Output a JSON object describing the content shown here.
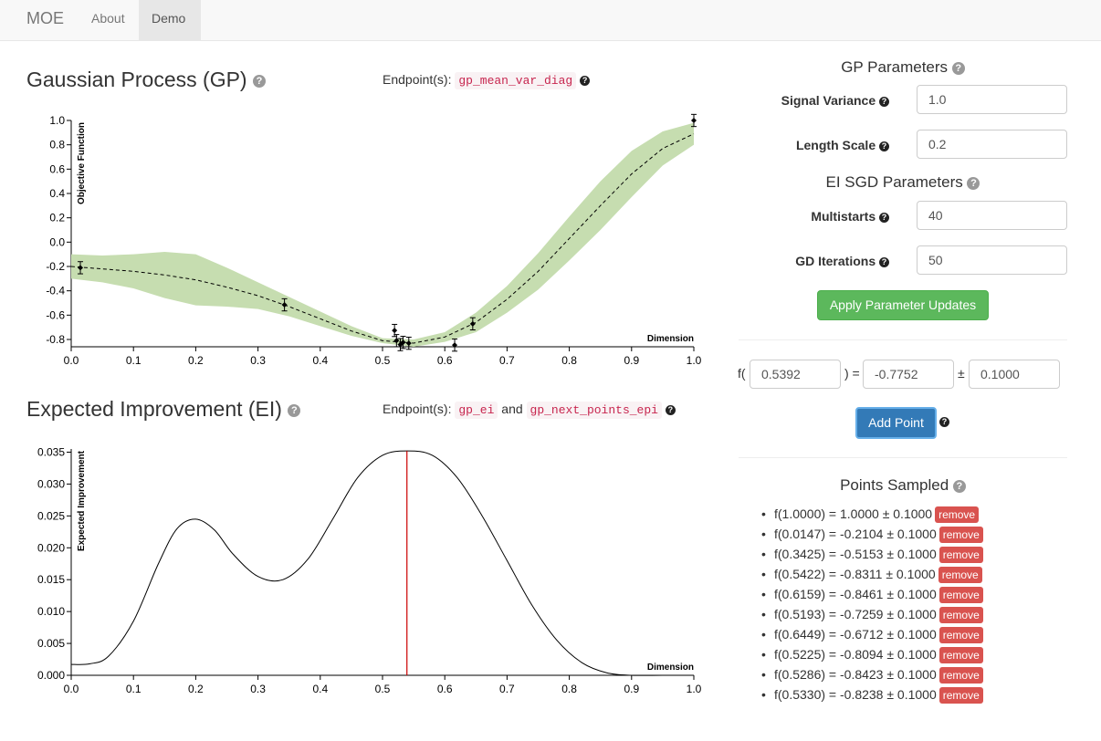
{
  "nav": {
    "brand": "MOE",
    "about": "About",
    "demo": "Demo"
  },
  "gp": {
    "title": "Gaussian Process (GP)",
    "endpoint_label": "Endpoint(s):",
    "endpoint_code": "gp_mean_var_diag"
  },
  "ei": {
    "title": "Expected Improvement (EI)",
    "endpoint_label": "Endpoint(s):",
    "endpoint_code_1": "gp_ei",
    "endpoint_and": "and",
    "endpoint_code_2": "gp_next_points_epi"
  },
  "gp_params": {
    "title": "GP Parameters",
    "signal_variance_label": "Signal Variance",
    "signal_variance_value": "1.0",
    "length_scale_label": "Length Scale",
    "length_scale_value": "0.2"
  },
  "ei_params": {
    "title": "EI SGD Parameters",
    "multistarts_label": "Multistarts",
    "multistarts_value": "40",
    "gd_iterations_label": "GD Iterations",
    "gd_iterations_value": "50",
    "apply_button": "Apply Parameter Updates"
  },
  "new_point": {
    "f_open": "f(",
    "x_value": "0.5392",
    "equals": ") =",
    "y_value": "-0.7752",
    "pm": "±",
    "noise_value": "0.1000",
    "add_button": "Add Point"
  },
  "points_sampled": {
    "title": "Points Sampled",
    "remove_label": "remove",
    "items": [
      "f(1.0000) = 1.0000 ± 0.1000",
      "f(0.0147) = -0.2104 ± 0.1000",
      "f(0.3425) = -0.5153 ± 0.1000",
      "f(0.5422) = -0.8311 ± 0.1000",
      "f(0.6159) = -0.8461 ± 0.1000",
      "f(0.5193) = -0.7259 ± 0.1000",
      "f(0.6449) = -0.6712 ± 0.1000",
      "f(0.5225) = -0.8094 ± 0.1000",
      "f(0.5286) = -0.8423 ± 0.1000",
      "f(0.5330) = -0.8238 ± 0.1000"
    ]
  },
  "colors": {
    "band": "#c6ddb0",
    "ei_line": "#000000",
    "next_point_line": "#cc0000"
  },
  "chart_data": [
    {
      "type": "line",
      "name": "gp",
      "ylabel": "Objective Function",
      "xlabel": "Dimension",
      "xlim": [
        0,
        1
      ],
      "ylim": [
        -0.86,
        1.0
      ],
      "x_ticks": [
        "0.0",
        "0.1",
        "0.2",
        "0.3",
        "0.4",
        "0.5",
        "0.6",
        "0.7",
        "0.8",
        "0.9",
        "1.0"
      ],
      "y_ticks": [
        "-0.8",
        "-0.6",
        "-0.4",
        "-0.2",
        "0.0",
        "0.2",
        "0.4",
        "0.6",
        "0.8",
        "1.0"
      ],
      "mean": {
        "x": [
          0.0,
          0.05,
          0.1,
          0.15,
          0.2,
          0.25,
          0.3,
          0.35,
          0.4,
          0.45,
          0.5,
          0.55,
          0.6,
          0.65,
          0.7,
          0.75,
          0.8,
          0.85,
          0.9,
          0.95,
          1.0
        ],
        "y": [
          -0.2,
          -0.22,
          -0.24,
          -0.27,
          -0.31,
          -0.37,
          -0.44,
          -0.53,
          -0.63,
          -0.73,
          -0.81,
          -0.83,
          -0.78,
          -0.66,
          -0.47,
          -0.24,
          0.03,
          0.3,
          0.56,
          0.77,
          0.89
        ]
      },
      "upper": [
        -0.1,
        -0.11,
        -0.1,
        -0.08,
        -0.1,
        -0.21,
        -0.33,
        -0.45,
        -0.57,
        -0.69,
        -0.79,
        -0.8,
        -0.74,
        -0.58,
        -0.36,
        -0.09,
        0.21,
        0.5,
        0.75,
        0.91,
        0.98
      ],
      "lower": [
        -0.3,
        -0.33,
        -0.38,
        -0.46,
        -0.52,
        -0.53,
        -0.55,
        -0.61,
        -0.69,
        -0.77,
        -0.83,
        -0.86,
        -0.82,
        -0.74,
        -0.58,
        -0.39,
        -0.15,
        0.1,
        0.37,
        0.63,
        0.8
      ],
      "points": [
        {
          "x": 1.0,
          "y": 1.0,
          "err": 0.05
        },
        {
          "x": 0.0147,
          "y": -0.2104,
          "err": 0.05
        },
        {
          "x": 0.3425,
          "y": -0.5153,
          "err": 0.05
        },
        {
          "x": 0.5422,
          "y": -0.8311,
          "err": 0.05
        },
        {
          "x": 0.6159,
          "y": -0.8461,
          "err": 0.05
        },
        {
          "x": 0.5193,
          "y": -0.7259,
          "err": 0.05
        },
        {
          "x": 0.6449,
          "y": -0.6712,
          "err": 0.05
        },
        {
          "x": 0.5225,
          "y": -0.8094,
          "err": 0.05
        },
        {
          "x": 0.5286,
          "y": -0.8423,
          "err": 0.05
        },
        {
          "x": 0.533,
          "y": -0.8238,
          "err": 0.05
        }
      ]
    },
    {
      "type": "line",
      "name": "ei",
      "ylabel": "Expected Improvement",
      "xlabel": "Dimension",
      "xlim": [
        0,
        1
      ],
      "ylim": [
        0,
        0.0355
      ],
      "x_ticks": [
        "0.0",
        "0.1",
        "0.2",
        "0.3",
        "0.4",
        "0.5",
        "0.6",
        "0.7",
        "0.8",
        "0.9",
        "1.0"
      ],
      "y_ticks": [
        "0.000",
        "0.005",
        "0.010",
        "0.015",
        "0.020",
        "0.025",
        "0.030",
        "0.035"
      ],
      "x": [
        0.0,
        0.03,
        0.06,
        0.1,
        0.14,
        0.17,
        0.2,
        0.23,
        0.26,
        0.3,
        0.34,
        0.38,
        0.42,
        0.46,
        0.5,
        0.54,
        0.58,
        0.62,
        0.66,
        0.7,
        0.74,
        0.78,
        0.82,
        0.86,
        0.9,
        0.95,
        1.0
      ],
      "y": [
        0.0017,
        0.0018,
        0.003,
        0.0085,
        0.0175,
        0.023,
        0.0245,
        0.0228,
        0.019,
        0.0155,
        0.015,
        0.0182,
        0.0245,
        0.031,
        0.0345,
        0.0352,
        0.0345,
        0.031,
        0.025,
        0.018,
        0.011,
        0.0055,
        0.002,
        0.0004,
        0.0,
        0.0,
        0.0
      ],
      "next_point_x": 0.5392
    }
  ]
}
